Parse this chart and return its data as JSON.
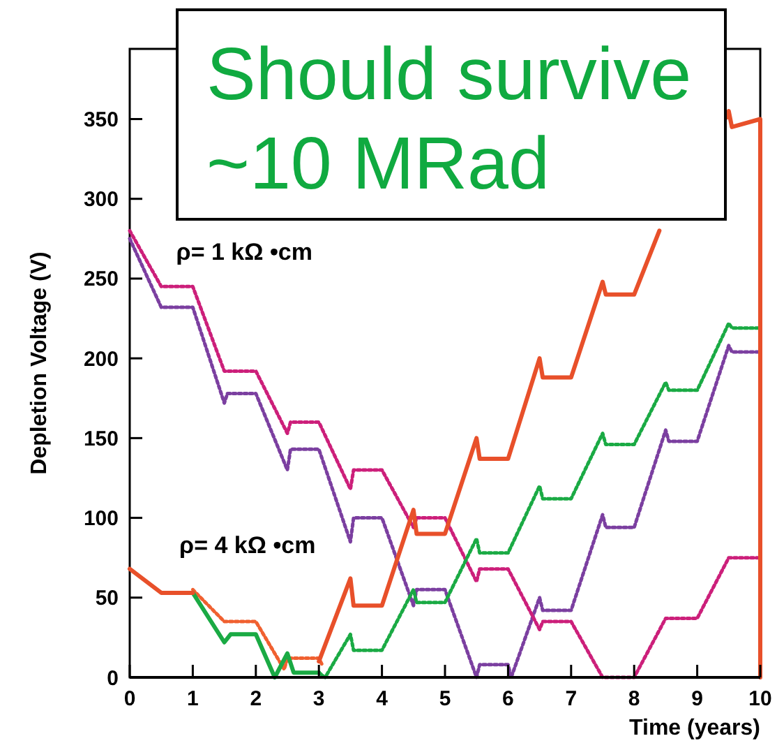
{
  "chart_data": {
    "type": "line",
    "xlabel": "Time (years)",
    "ylabel": "Depletion Voltage (V)",
    "xlim": [
      0,
      10
    ],
    "xticks": [
      0,
      1,
      2,
      3,
      4,
      5,
      6,
      7,
      8,
      9,
      10
    ],
    "ylim": [
      0,
      394
    ],
    "yticks": [
      0,
      50,
      100,
      150,
      200,
      250,
      300,
      350
    ],
    "grid": false,
    "annotations": [
      "Should survive ~10 MRad",
      "ρ= 1 kΩ •cm",
      "ρ= 4 kΩ •cm"
    ],
    "series": [
      {
        "color": "#7b3fa0",
        "line_style": "dotted",
        "x": [
          0,
          0.5,
          1,
          1.5,
          1.55,
          2,
          2.5,
          2.55,
          3,
          3.5,
          3.55,
          4,
          4.5,
          4.55,
          5,
          5.5,
          5.55,
          6,
          6.05,
          6.5,
          6.55,
          7,
          7.5,
          7.55,
          8,
          8.5,
          8.55,
          9,
          9.5,
          9.55,
          10
        ],
        "values": [
          275,
          232,
          232,
          172,
          178,
          178,
          130,
          143,
          143,
          85,
          100,
          100,
          45,
          55,
          55,
          0,
          8,
          8,
          0,
          50,
          42,
          42,
          102,
          94,
          94,
          155,
          148,
          148,
          208,
          204,
          204
        ]
      },
      {
        "color": "#cc1f7a",
        "line_style": "dotted",
        "x": [
          0,
          0.5,
          1,
          1.5,
          2,
          2.5,
          2.55,
          3,
          3.5,
          3.55,
          4,
          4.5,
          4.55,
          5,
          5.5,
          5.55,
          6,
          6.5,
          6.55,
          7,
          7.5,
          8,
          8.5,
          9,
          9.5,
          10
        ],
        "values": [
          280,
          245,
          245,
          192,
          192,
          153,
          160,
          160,
          118,
          130,
          130,
          94,
          100,
          100,
          60,
          68,
          68,
          30,
          35,
          35,
          0,
          0,
          37,
          37,
          75,
          75
        ]
      },
      {
        "color": "#f06030",
        "line_style": "dotted",
        "x": [
          1,
          1.5,
          2,
          2.45,
          2.5,
          3,
          3.05
        ],
        "values": [
          55,
          35,
          35,
          5,
          12,
          12,
          8
        ]
      },
      {
        "color": "#1aaa44",
        "line_style": "solid",
        "x": [
          1,
          1.5,
          1.6,
          2,
          2.3,
          2.5,
          2.6,
          3
        ],
        "values": [
          53,
          22,
          27,
          27,
          0,
          15,
          3,
          3
        ]
      },
      {
        "color": "#1aaa44",
        "line_style": "dotted",
        "x": [
          3,
          3.1,
          3.5,
          3.55,
          4,
          4.5,
          4.55,
          5,
          5.5,
          5.55,
          6,
          6.5,
          6.55,
          7,
          7.5,
          7.55,
          8,
          8.5,
          8.55,
          9,
          9.5,
          9.55,
          10
        ],
        "values": [
          3,
          0,
          27,
          17,
          17,
          55,
          47,
          47,
          87,
          78,
          78,
          120,
          112,
          112,
          153,
          146,
          146,
          185,
          180,
          180,
          222,
          219,
          219
        ]
      },
      {
        "color": "#e8502a",
        "line_style": "solid",
        "x": [
          0,
          0.5,
          1
        ],
        "values": [
          68,
          53,
          53
        ]
      },
      {
        "color": "#e8502a",
        "line_style": "solid",
        "x": [
          3,
          3.5,
          3.55,
          4,
          4.5,
          4.55,
          5,
          5.5,
          5.55,
          6,
          6.5,
          6.55,
          7,
          7.5,
          7.55,
          8,
          8.4,
          9.45,
          9.47,
          9.5,
          9.55,
          10,
          10
        ],
        "values": [
          10,
          62,
          45,
          45,
          105,
          90,
          90,
          150,
          137,
          137,
          200,
          188,
          188,
          248,
          240,
          240,
          280,
          null,
          351,
          355,
          345,
          350,
          0
        ]
      }
    ]
  }
}
